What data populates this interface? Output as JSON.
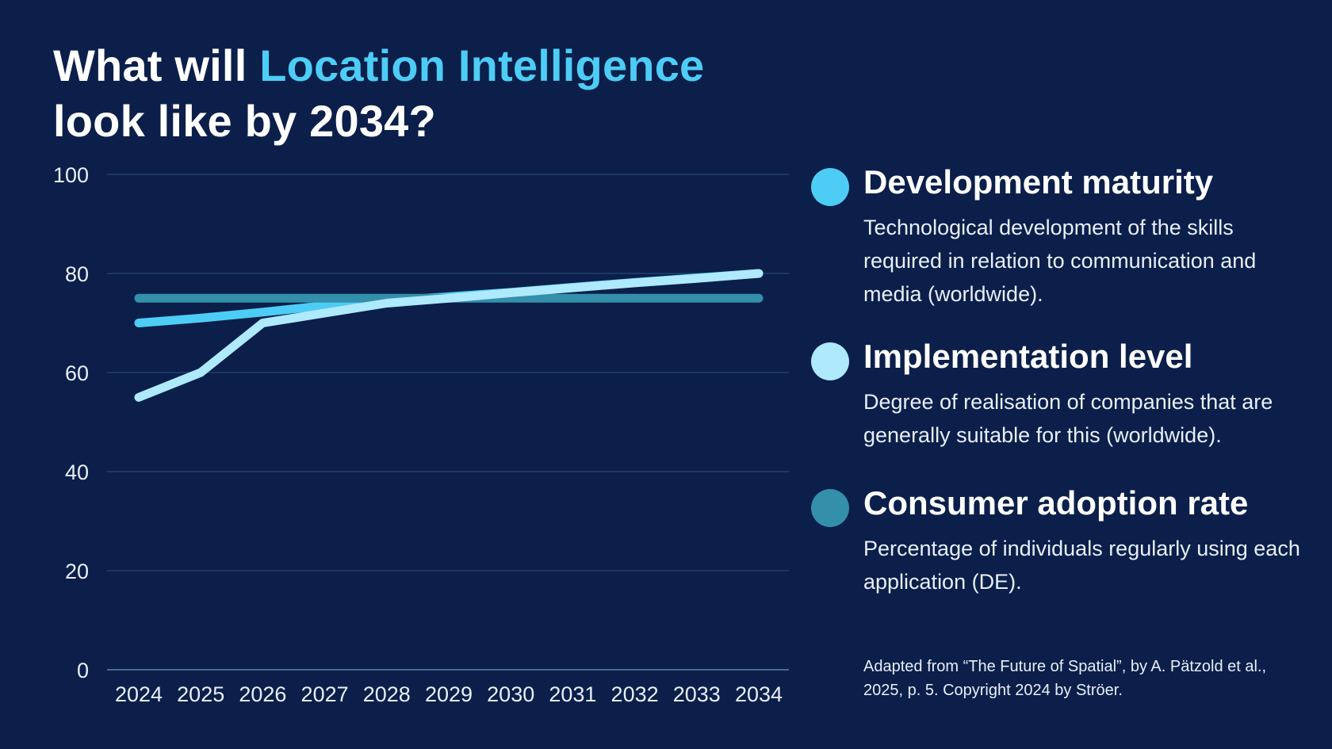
{
  "title": {
    "prefix": "What will ",
    "highlight": "Location Intelligence",
    "line2": "look like by 2034?"
  },
  "colors": {
    "background": "#0b1f4a",
    "gridline": "#23406e",
    "development": "#4dcdf5",
    "implementation": "#aee9fd",
    "consumer": "#348fab"
  },
  "legend": [
    {
      "title": "Development maturity",
      "description": "Technological development of the skills required in relation to communication and media (worldwide).",
      "color": "#4dcdf5"
    },
    {
      "title": "Implementation level",
      "description": "Degree of realisation of companies that are generally suitable for this (worldwide).",
      "color": "#aee9fd"
    },
    {
      "title": "Consumer adoption rate",
      "description": "Percentage of individuals regularly using each application (DE).",
      "color": "#348fab"
    }
  ],
  "source": "Adapted from “The Future of Spatial”, by A. Pätzold et al., 2025, p. 5. Copyright 2024 by Ströer.",
  "chart_data": {
    "type": "line",
    "x": [
      "2024",
      "2025",
      "2026",
      "2027",
      "2028",
      "2029",
      "2030",
      "2031",
      "2032",
      "2033",
      "2034"
    ],
    "ylim": [
      0,
      100
    ],
    "yticks": [
      0,
      20,
      40,
      60,
      80,
      100
    ],
    "grid": true,
    "legend_placement": "right",
    "series": [
      {
        "name": "Development maturity",
        "color": "#4dcdf5",
        "values": [
          70,
          71,
          72.2,
          73.5,
          74.5,
          75.3,
          76.2,
          77.2,
          78.2,
          79.1,
          80
        ]
      },
      {
        "name": "Implementation level",
        "color": "#aee9fd",
        "values": [
          55,
          60,
          70,
          72,
          74,
          75,
          76.1,
          77.1,
          78.1,
          79,
          80
        ]
      },
      {
        "name": "Consumer adoption rate",
        "color": "#348fab",
        "values": [
          75,
          75,
          75,
          75,
          75,
          75,
          75,
          75,
          75,
          75,
          75
        ]
      }
    ]
  }
}
